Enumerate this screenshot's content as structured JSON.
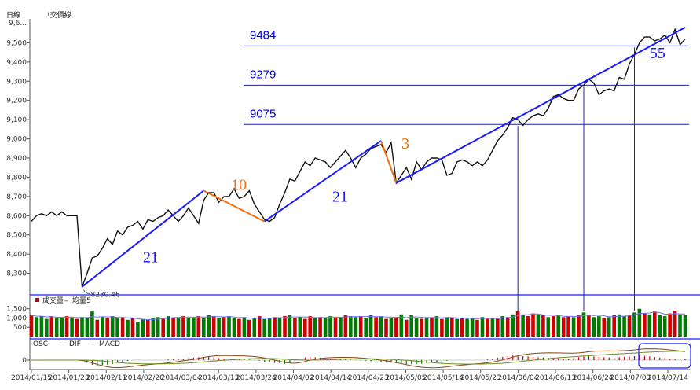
{
  "header": {
    "left_label": "日線",
    "right_label": "!交價線"
  },
  "chart_data": {
    "type": "line",
    "title": "",
    "price_axis": {
      "ylim": [
        8200,
        9600
      ],
      "ticks": [
        8300,
        8400,
        8500,
        8600,
        8700,
        8800,
        8900,
        9000,
        9100,
        9200,
        9300,
        9400,
        9500
      ],
      "top_label": "9,6..."
    },
    "x_labels": [
      "2014/01/15",
      "2014/01/23",
      "2014/02/11",
      "2014/02/20",
      "2014/03/04",
      "2014/03/13",
      "2014/03/24",
      "2014/04/02",
      "2014/04/14",
      "2014/04/23",
      "2014/05/05",
      "2014/05/14",
      "2014/05/23",
      "2014/06/04",
      "2014/06/13",
      "2014/06/24",
      "2014/07/03",
      "2014/07/14"
    ],
    "price_series": [
      8570,
      8600,
      8610,
      8600,
      8620,
      8600,
      8620,
      8600,
      8600,
      8600,
      8230,
      8300,
      8380,
      8390,
      8430,
      8480,
      8450,
      8520,
      8500,
      8540,
      8550,
      8570,
      8530,
      8580,
      8570,
      8590,
      8600,
      8630,
      8600,
      8570,
      8600,
      8640,
      8600,
      8560,
      8680,
      8720,
      8720,
      8670,
      8700,
      8700,
      8740,
      8690,
      8700,
      8730,
      8660,
      8620,
      8580,
      8570,
      8590,
      8660,
      8720,
      8790,
      8780,
      8830,
      8880,
      8860,
      8900,
      8890,
      8880,
      8850,
      8880,
      8910,
      8940,
      8900,
      8850,
      8900,
      8920,
      8950,
      8960,
      8970,
      8930,
      8980,
      8770,
      8810,
      8850,
      8790,
      8880,
      8840,
      8880,
      8900,
      8900,
      8890,
      8810,
      8820,
      8880,
      8890,
      8880,
      8860,
      8880,
      8860,
      8890,
      8940,
      8990,
      9020,
      9060,
      9110,
      9100,
      9070,
      9100,
      9120,
      9130,
      9120,
      9160,
      9220,
      9230,
      9210,
      9200,
      9200,
      9260,
      9280,
      9310,
      9290,
      9230,
      9250,
      9260,
      9250,
      9320,
      9310,
      9390,
      9440,
      9500,
      9530,
      9530,
      9510,
      9520,
      9540,
      9500,
      9570,
      9490,
      9520
    ],
    "levels": [
      {
        "value": 9484,
        "label": "9484"
      },
      {
        "value": 9279,
        "label": "9279"
      },
      {
        "value": 9075,
        "label": "9075"
      }
    ],
    "annotations": [
      {
        "text": "8230.46",
        "price": 8230.46
      }
    ],
    "waves": [
      {
        "from": [
          10,
          8230
        ],
        "to": [
          34,
          8730
        ],
        "color": "#1a1aff",
        "label": "21",
        "label_color": "#1a1aff"
      },
      {
        "from": [
          34,
          8730
        ],
        "to": [
          46,
          8570
        ],
        "color": "#f07010",
        "label": "10",
        "label_color": "#f07010"
      },
      {
        "from": [
          46,
          8570
        ],
        "to": [
          69,
          8990
        ],
        "color": "#1a1aff",
        "label": "21",
        "label_color": "#1a1aff"
      },
      {
        "from": [
          69,
          8990
        ],
        "to": [
          72,
          8770
        ],
        "color": "#f07010",
        "label": "3",
        "label_color": "#f07010"
      },
      {
        "from": [
          72,
          8770
        ],
        "to": [
          129,
          9580
        ],
        "color": "#1a1aff",
        "label": "55",
        "label_color": "#1a1aff"
      }
    ],
    "volume": {
      "title": "成交量",
      "legend": [
        "均量5"
      ],
      "ticks": [
        500,
        1000,
        1500
      ],
      "ylim": [
        0,
        1700
      ],
      "values": [
        1150,
        1050,
        1100,
        950,
        1100,
        1000,
        1050,
        1100,
        1000,
        950,
        1050,
        1000,
        1350,
        900,
        1050,
        1000,
        1100,
        1050,
        1000,
        900,
        1000,
        800,
        950,
        900,
        1000,
        1050,
        950,
        1100,
        1000,
        1050,
        1100,
        1000,
        1050,
        1100,
        1000,
        1150,
        1100,
        1000,
        1050,
        1100,
        1000,
        950,
        1050,
        900,
        1000,
        1100,
        950,
        1000,
        1050,
        1000,
        1100,
        1150,
        1000,
        1050,
        950,
        1100,
        1000,
        1050,
        1000,
        1100,
        1050,
        1000,
        1150,
        1100,
        1050,
        1100,
        1000,
        1150,
        1050,
        1100,
        950,
        1000,
        1050,
        1200,
        900,
        1150,
        1000,
        950,
        1050,
        1000,
        1100,
        950,
        1050,
        1000,
        950,
        1000,
        950,
        1000,
        900,
        1050,
        950,
        1000,
        950,
        1100,
        1050,
        1200,
        1400,
        1150,
        1100,
        1250,
        1200,
        1150,
        1050,
        1100,
        1150,
        1050,
        1100,
        1050,
        1150,
        1300,
        1150,
        1050,
        1100,
        1000,
        1050,
        1150,
        1200,
        1100,
        1150,
        1300,
        1500,
        1250,
        1200,
        1350,
        1150,
        1100,
        1250,
        1400,
        1200,
        1150
      ],
      "up": [
        1,
        0,
        0,
        0,
        1,
        0,
        0,
        1,
        0,
        1,
        0,
        0,
        0,
        1,
        0,
        1,
        0,
        0,
        1,
        0,
        1,
        0,
        0,
        1,
        0,
        0,
        1,
        0,
        1,
        0,
        1,
        0,
        0,
        1,
        0,
        0,
        1,
        0,
        1,
        0,
        0,
        1,
        0,
        1,
        0,
        1,
        0,
        0,
        1,
        0,
        1,
        0,
        1,
        0,
        1,
        1,
        0,
        1,
        0,
        0,
        1,
        0,
        1,
        0,
        0,
        1,
        0,
        0,
        1,
        0,
        1,
        0,
        1,
        0,
        1,
        0,
        0,
        1,
        0,
        1,
        0,
        1,
        0,
        1,
        0,
        1,
        0,
        0,
        1,
        0,
        1,
        0,
        1,
        0,
        1,
        0,
        1,
        0,
        1,
        1,
        0,
        1,
        0,
        1,
        0,
        1,
        1,
        0,
        1,
        0,
        1,
        0,
        0,
        1,
        0,
        1,
        0,
        0,
        1,
        0,
        0,
        1,
        0,
        1,
        0,
        0,
        1,
        1,
        0,
        0
      ],
      "avg5_color": "#7070ff",
      "up_color": "#cc0000",
      "down_color": "#007a00"
    },
    "macd": {
      "legend": [
        "OSC",
        "DIF",
        "MACD"
      ],
      "ticks": [
        0
      ],
      "ylim": [
        -60,
        90
      ],
      "osc": [
        0,
        0,
        0,
        0,
        0,
        0,
        0,
        0,
        0,
        0,
        -8,
        -20,
        -35,
        -40,
        -38,
        -35,
        -30,
        -20,
        -12,
        -6,
        0,
        0,
        0,
        0,
        0,
        0,
        0,
        5,
        8,
        10,
        12,
        15,
        18,
        22,
        24,
        25,
        20,
        15,
        12,
        10,
        8,
        6,
        5,
        4,
        2,
        -5,
        -12,
        -18,
        -22,
        -25,
        -28,
        -20,
        -10,
        5,
        20,
        25,
        22,
        18,
        15,
        12,
        10,
        8,
        6,
        4,
        2,
        -2,
        -5,
        -8,
        -10,
        -12,
        -15,
        -20,
        -25,
        -28,
        -30,
        -32,
        -30,
        -28,
        -25,
        -20,
        -15,
        -10,
        -5,
        0,
        0,
        0,
        0,
        0,
        0,
        0,
        5,
        10,
        18,
        25,
        30,
        35,
        32,
        30,
        28,
        25,
        22,
        20,
        18,
        15,
        15,
        12,
        12,
        15,
        22,
        28,
        30,
        28,
        25,
        22,
        20,
        18,
        22,
        25,
        28,
        30,
        35,
        32,
        28,
        24,
        20,
        16,
        12,
        10,
        8,
        6
      ],
      "dif_color": "#8b4513",
      "macd_color": "#6b8e23",
      "up_color": "#cc0000",
      "down_color": "#007a00"
    }
  }
}
